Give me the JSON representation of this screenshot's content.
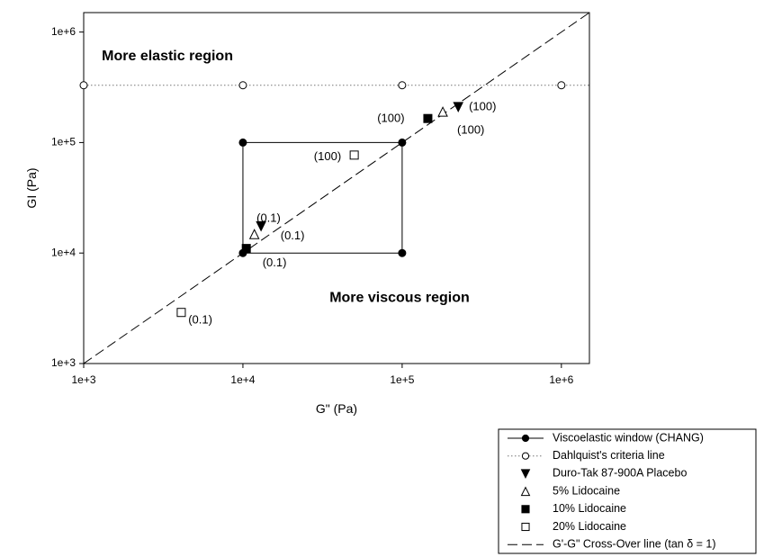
{
  "chart_data": {
    "type": "scatter",
    "xscale": "log",
    "yscale": "log",
    "xlim": [
      1000,
      1500000
    ],
    "ylim": [
      1000,
      1500000
    ],
    "xlabel": "G\" (Pa)",
    "ylabel": "GI (Pa)",
    "x_ticks": [
      {
        "value": 1000,
        "label": "1e+3"
      },
      {
        "value": 10000,
        "label": "1e+4"
      },
      {
        "value": 100000,
        "label": "1e+5"
      },
      {
        "value": 1000000,
        "label": "1e+6"
      }
    ],
    "y_ticks": [
      {
        "value": 1000,
        "label": "1e+3"
      },
      {
        "value": 10000,
        "label": "1e+4"
      },
      {
        "value": 100000,
        "label": "1e+5"
      },
      {
        "value": 1000000,
        "label": "1e+6"
      }
    ],
    "grid": false,
    "legend_position": "bottom-right, outside plot",
    "regions": [
      {
        "text": "More elastic region",
        "x": 1300,
        "y": 600000
      },
      {
        "text": "More viscous region",
        "x": 35000,
        "y": 3900
      }
    ],
    "series": [
      {
        "name": "Viscoelastic window (CHANG)",
        "kind": "window",
        "marker": "filled-circle",
        "line": "solid",
        "points": [
          {
            "x": 10000,
            "y": 10000
          },
          {
            "x": 100000,
            "y": 10000
          },
          {
            "x": 100000,
            "y": 100000
          },
          {
            "x": 10000,
            "y": 100000
          }
        ]
      },
      {
        "name": "Dahlquist's criteria line",
        "kind": "hline",
        "marker": "open-circle",
        "line": "dotted",
        "y": 330000,
        "points": [
          {
            "x": 1000,
            "y": 330000
          },
          {
            "x": 10000,
            "y": 330000
          },
          {
            "x": 100000,
            "y": 330000
          },
          {
            "x": 1000000,
            "y": 330000
          }
        ]
      },
      {
        "name": "Duro-Tak 87-900A Placebo",
        "kind": "points",
        "marker": "filled-triangle-down",
        "points": [
          {
            "x": 13000,
            "y": 17500
          },
          {
            "x": 225000,
            "y": 210000
          }
        ]
      },
      {
        "name": "5% Lidocaine",
        "kind": "points",
        "marker": "open-triangle-up",
        "points": [
          {
            "x": 11800,
            "y": 14800
          },
          {
            "x": 180000,
            "y": 190000
          }
        ]
      },
      {
        "name": "10% Lidocaine",
        "kind": "points",
        "marker": "filled-square",
        "points": [
          {
            "x": 10500,
            "y": 11000
          },
          {
            "x": 145000,
            "y": 165000
          }
        ]
      },
      {
        "name": "20% Lidocaine",
        "kind": "points",
        "marker": "open-square",
        "points": [
          {
            "x": 4100,
            "y": 2900
          },
          {
            "x": 50000,
            "y": 77000
          }
        ]
      },
      {
        "name": "G'-G\" Cross-Over line (tan δ = 1)",
        "kind": "diagonal",
        "marker": "none",
        "line": "dashed",
        "points": [
          {
            "x": 1000,
            "y": 1000
          },
          {
            "x": 1500000,
            "y": 1500000
          }
        ]
      }
    ],
    "annotations": [
      {
        "text": "(0.1)",
        "x": 14500,
        "y": 20500
      },
      {
        "text": "(0.1)",
        "x": 20500,
        "y": 14200
      },
      {
        "text": "(0.1)",
        "x": 15800,
        "y": 8100
      },
      {
        "text": "(0.1)",
        "x": 5400,
        "y": 2450
      },
      {
        "text": "(100)",
        "x": 34000,
        "y": 74000
      },
      {
        "text": "(100)",
        "x": 85000,
        "y": 164000
      },
      {
        "text": "(100)",
        "x": 320000,
        "y": 209000
      },
      {
        "text": "(100)",
        "x": 270000,
        "y": 129000
      }
    ]
  }
}
